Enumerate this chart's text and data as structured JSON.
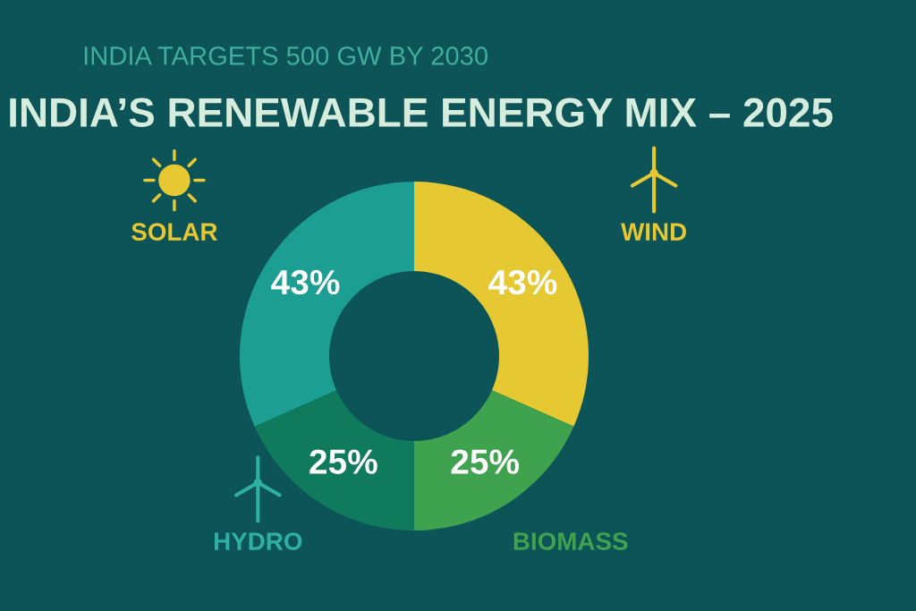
{
  "chart_data": {
    "type": "donut",
    "title": "INDIA’S RENEWABLE ENERGY MIX – 2025",
    "subtitle": "INDIA TARGETS 500 GW BY 2030",
    "categories": [
      "WIND",
      "BIOMASS",
      "HYDRO",
      "SOLAR"
    ],
    "values": [
      43,
      25,
      25,
      43
    ],
    "value_labels": [
      "43%",
      "25%",
      "25%",
      "43%"
    ],
    "colors": [
      "#e6c832",
      "#3ea24f",
      "#0f7a5c",
      "#1d9e93"
    ]
  }
}
